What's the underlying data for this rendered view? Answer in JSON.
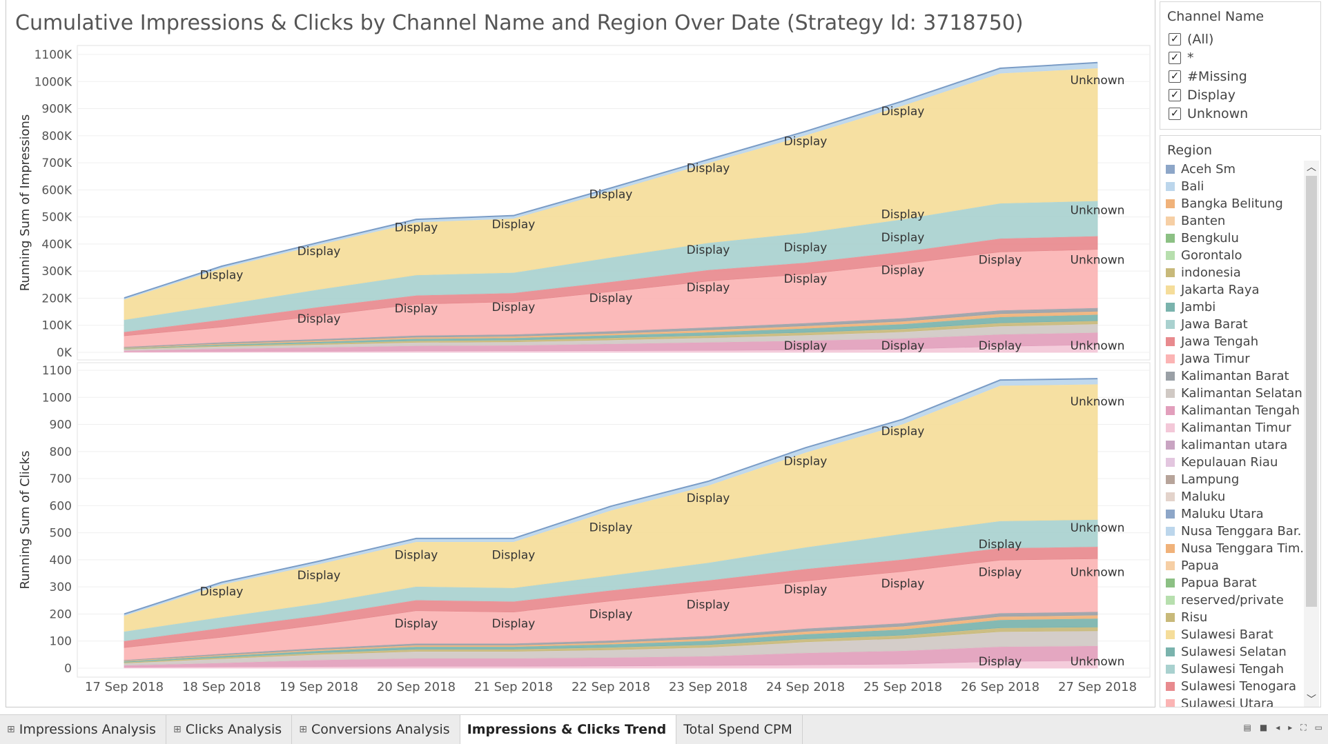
{
  "title": "Cumulative Impressions & Clicks by Channel Name and Region Over Date (Strategy Id: 3718750)",
  "chart_data": [
    {
      "type": "area",
      "stacked": true,
      "ylabel": "Running Sum of Impressions",
      "yticks": [
        "0K",
        "100K",
        "200K",
        "300K",
        "400K",
        "500K",
        "600K",
        "700K",
        "800K",
        "900K",
        "1000K",
        "1100K"
      ],
      "ylim": [
        0,
        1100000
      ],
      "x": [
        "17 Sep 2018",
        "18 Sep 2018",
        "19 Sep 2018",
        "20 Sep 2018",
        "21 Sep 2018",
        "22 Sep 2018",
        "23 Sep 2018",
        "24 Sep 2018",
        "25 Sep 2018",
        "26 Sep 2018",
        "27 Sep 2018"
      ],
      "series": [
        {
          "color": "#f3c8d8",
          "values": [
            2000,
            3000,
            4000,
            5000,
            5500,
            6000,
            7000,
            9000,
            12000,
            22000,
            28000
          ]
        },
        {
          "color": "#e29fbc",
          "values": [
            5000,
            11000,
            15000,
            20000,
            21000,
            26000,
            31000,
            35000,
            40000,
            45000,
            46000
          ]
        },
        {
          "color": "#d0c9c4",
          "values": [
            5000,
            8000,
            10000,
            12000,
            12500,
            14000,
            16000,
            20000,
            24000,
            30000,
            31000
          ]
        },
        {
          "color": "#c8b97a",
          "values": [
            2000,
            4000,
            5000,
            6000,
            6500,
            8000,
            9000,
            10000,
            11000,
            12000,
            12000
          ]
        },
        {
          "color": "#7ab3ad",
          "values": [
            2000,
            4000,
            6000,
            8000,
            8500,
            10000,
            12000,
            15000,
            18000,
            22000,
            23000
          ]
        },
        {
          "color": "#f0b27a",
          "values": [
            2000,
            3000,
            4000,
            5000,
            5500,
            6000,
            8000,
            9000,
            10000,
            12000,
            12000
          ]
        },
        {
          "color": "#9aa0a6",
          "values": [
            3000,
            5000,
            6000,
            7000,
            7500,
            9000,
            10000,
            11000,
            12000,
            13000,
            13000
          ]
        },
        {
          "color": "#fbb4b4",
          "values": [
            40000,
            55000,
            85000,
            115000,
            120000,
            145000,
            170000,
            180000,
            200000,
            215000,
            215000
          ]
        },
        {
          "color": "#e88a8e",
          "values": [
            15000,
            28000,
            33000,
            33000,
            33000,
            37000,
            42000,
            43000,
            45000,
            50000,
            50000
          ]
        },
        {
          "color": "#a9d1cf",
          "values": [
            45000,
            55000,
            65000,
            75000,
            75000,
            90000,
            100000,
            110000,
            120000,
            130000,
            130000
          ]
        },
        {
          "color": "#f5dd9a",
          "values": [
            75000,
            135000,
            165000,
            195000,
            200000,
            245000,
            295000,
            360000,
            420000,
            480000,
            490000
          ]
        },
        {
          "color": "#bcd6ec",
          "values": [
            5000,
            7000,
            8000,
            10000,
            10000,
            11000,
            12000,
            14000,
            16000,
            18000,
            20000
          ]
        }
      ],
      "labels": [
        {
          "text": "Display",
          "xi": 1,
          "v": 263000
        },
        {
          "text": "Display",
          "xi": 2,
          "v": 351000
        },
        {
          "text": "Display",
          "xi": 3,
          "v": 439000
        },
        {
          "text": "Display",
          "xi": 4,
          "v": 451000
        },
        {
          "text": "Display",
          "xi": 5,
          "v": 562000
        },
        {
          "text": "Display",
          "xi": 6,
          "v": 658000
        },
        {
          "text": "Display",
          "xi": 7,
          "v": 758000
        },
        {
          "text": "Display",
          "xi": 8,
          "v": 868000
        },
        {
          "text": "Unknown",
          "xi": 10,
          "v": 983000
        },
        {
          "text": "Display",
          "xi": 8,
          "v": 402000
        },
        {
          "text": "Display",
          "xi": 7,
          "v": 365000
        },
        {
          "text": "Display",
          "xi": 6,
          "v": 356000
        },
        {
          "text": "Display",
          "xi": 8,
          "v": 487000
        },
        {
          "text": "Unknown",
          "xi": 10,
          "v": 503000
        },
        {
          "text": "Display",
          "xi": 2,
          "v": 102000
        },
        {
          "text": "Display",
          "xi": 3,
          "v": 140000
        },
        {
          "text": "Display",
          "xi": 4,
          "v": 145000
        },
        {
          "text": "Display",
          "xi": 5,
          "v": 178000
        },
        {
          "text": "Display",
          "xi": 6,
          "v": 218000
        },
        {
          "text": "Display",
          "xi": 7,
          "v": 249000
        },
        {
          "text": "Display",
          "xi": 8,
          "v": 282000
        },
        {
          "text": "Display",
          "xi": 9,
          "v": 319000
        },
        {
          "text": "Unknown",
          "xi": 10,
          "v": 319000
        },
        {
          "text": "Display",
          "xi": 7,
          "v": 2000
        },
        {
          "text": "Display",
          "xi": 8,
          "v": 2000
        },
        {
          "text": "Display",
          "xi": 9,
          "v": 2000
        },
        {
          "text": "Unknown",
          "xi": 10,
          "v": 2000
        }
      ]
    },
    {
      "type": "area",
      "stacked": true,
      "ylabel": "Running Sum of Clicks",
      "yticks": [
        "0",
        "100",
        "200",
        "300",
        "400",
        "500",
        "600",
        "700",
        "800",
        "900",
        "1000",
        "1100"
      ],
      "ylim": [
        0,
        1100
      ],
      "x": [
        "17 Sep 2018",
        "18 Sep 2018",
        "19 Sep 2018",
        "20 Sep 2018",
        "21 Sep 2018",
        "22 Sep 2018",
        "23 Sep 2018",
        "24 Sep 2018",
        "25 Sep 2018",
        "26 Sep 2018",
        "27 Sep 2018"
      ],
      "series": [
        {
          "color": "#f3c8d8",
          "values": [
            3,
            5,
            6,
            7,
            7,
            8,
            10,
            12,
            15,
            25,
            28
          ]
        },
        {
          "color": "#e29fbc",
          "values": [
            8,
            15,
            25,
            30,
            30,
            32,
            35,
            45,
            50,
            55,
            55
          ]
        },
        {
          "color": "#d0c9c4",
          "values": [
            8,
            15,
            20,
            25,
            25,
            28,
            32,
            40,
            45,
            55,
            55
          ]
        },
        {
          "color": "#c8b97a",
          "values": [
            3,
            5,
            6,
            8,
            8,
            9,
            10,
            11,
            12,
            14,
            14
          ]
        },
        {
          "color": "#7ab3ad",
          "values": [
            4,
            6,
            8,
            10,
            10,
            12,
            15,
            18,
            22,
            30,
            32
          ]
        },
        {
          "color": "#f0b27a",
          "values": [
            2,
            3,
            4,
            5,
            5,
            6,
            8,
            10,
            11,
            12,
            12
          ]
        },
        {
          "color": "#9aa0a6",
          "values": [
            3,
            5,
            6,
            7,
            7,
            8,
            10,
            11,
            12,
            13,
            13
          ]
        },
        {
          "color": "#fbb4b4",
          "values": [
            45,
            60,
            85,
            120,
            115,
            145,
            165,
            175,
            190,
            195,
            195
          ]
        },
        {
          "color": "#e88a8e",
          "values": [
            25,
            35,
            35,
            40,
            40,
            40,
            40,
            45,
            45,
            45,
            45
          ]
        },
        {
          "color": "#a9d1cf",
          "values": [
            35,
            40,
            45,
            50,
            50,
            55,
            65,
            80,
            95,
            100,
            100
          ]
        },
        {
          "color": "#f5dd9a",
          "values": [
            58,
            120,
            145,
            165,
            170,
            240,
            285,
            350,
            405,
            500,
            500
          ]
        },
        {
          "color": "#bcd6ec",
          "values": [
            6,
            8,
            10,
            12,
            12,
            15,
            15,
            17,
            17,
            20,
            20
          ]
        }
      ],
      "labels": [
        {
          "text": "Display",
          "xi": 1,
          "v": 261
        },
        {
          "text": "Display",
          "xi": 2,
          "v": 321
        },
        {
          "text": "Display",
          "xi": 3,
          "v": 396
        },
        {
          "text": "Display",
          "xi": 4,
          "v": 396
        },
        {
          "text": "Display",
          "xi": 5,
          "v": 498
        },
        {
          "text": "Display",
          "xi": 6,
          "v": 606
        },
        {
          "text": "Display",
          "xi": 7,
          "v": 742
        },
        {
          "text": "Display",
          "xi": 8,
          "v": 853
        },
        {
          "text": "Unknown",
          "xi": 10,
          "v": 963
        },
        {
          "text": "Display",
          "xi": 9,
          "v": 435
        },
        {
          "text": "Unknown",
          "xi": 10,
          "v": 497
        },
        {
          "text": "Display",
          "xi": 3,
          "v": 142
        },
        {
          "text": "Display",
          "xi": 4,
          "v": 142
        },
        {
          "text": "Display",
          "xi": 5,
          "v": 177
        },
        {
          "text": "Display",
          "xi": 6,
          "v": 212
        },
        {
          "text": "Display",
          "xi": 7,
          "v": 269
        },
        {
          "text": "Display",
          "xi": 8,
          "v": 290
        },
        {
          "text": "Display",
          "xi": 9,
          "v": 332
        },
        {
          "text": "Unknown",
          "xi": 10,
          "v": 332
        },
        {
          "text": "Display",
          "xi": 9,
          "v": 3
        },
        {
          "text": "Unknown",
          "xi": 10,
          "v": 3
        }
      ]
    }
  ],
  "filters": {
    "channel_title": "Channel Name",
    "channels": [
      {
        "label": "(All)",
        "checked": true
      },
      {
        "label": "*",
        "checked": true
      },
      {
        "label": "#Missing",
        "checked": true
      },
      {
        "label": "Display",
        "checked": true
      },
      {
        "label": "Unknown",
        "checked": true
      }
    ],
    "check_glyph": "✓",
    "region_title": "Region",
    "regions": [
      {
        "label": "Aceh Sm",
        "color": "#8da6c8"
      },
      {
        "label": "Bali",
        "color": "#bcd6ec"
      },
      {
        "label": "Bangka Belitung",
        "color": "#f0b27a"
      },
      {
        "label": "Banten",
        "color": "#f6cfa5"
      },
      {
        "label": "Bengkulu",
        "color": "#8cc084"
      },
      {
        "label": "Gorontalo",
        "color": "#b7dfae"
      },
      {
        "label": "indonesia",
        "color": "#c8b97a"
      },
      {
        "label": "Jakarta Raya",
        "color": "#f5dd9a"
      },
      {
        "label": "Jambi",
        "color": "#7ab3ad"
      },
      {
        "label": "Jawa Barat",
        "color": "#a9d1cf"
      },
      {
        "label": "Jawa Tengah",
        "color": "#e88a8e"
      },
      {
        "label": "Jawa Timur",
        "color": "#fbb4b4"
      },
      {
        "label": "Kalimantan Barat",
        "color": "#9aa0a6"
      },
      {
        "label": "Kalimantan Selatan",
        "color": "#d0c9c4"
      },
      {
        "label": "Kalimantan Tengah",
        "color": "#e29fbc"
      },
      {
        "label": "Kalimantan Timur",
        "color": "#f3c8d8"
      },
      {
        "label": "kalimantan utara",
        "color": "#c9a4c2"
      },
      {
        "label": "Kepulauan Riau",
        "color": "#e3c6df"
      },
      {
        "label": "Lampung",
        "color": "#b7a49a"
      },
      {
        "label": "Maluku",
        "color": "#e3d3cb"
      },
      {
        "label": "Maluku Utara",
        "color": "#8da6c8"
      },
      {
        "label": "Nusa Tenggara Bar..",
        "color": "#bcd6ec"
      },
      {
        "label": "Nusa Tenggara Tim..",
        "color": "#f0b27a"
      },
      {
        "label": "Papua",
        "color": "#f6cfa5"
      },
      {
        "label": "Papua Barat",
        "color": "#8cc084"
      },
      {
        "label": "reserved/private",
        "color": "#b7dfae"
      },
      {
        "label": "Risu",
        "color": "#c8b97a"
      },
      {
        "label": "Sulawesi Barat",
        "color": "#f5dd9a"
      },
      {
        "label": "Sulawesi Selatan",
        "color": "#7ab3ad"
      },
      {
        "label": "Sulawesi Tengah",
        "color": "#a9d1cf"
      },
      {
        "label": "Sulawesi Tenogara",
        "color": "#e88a8e"
      },
      {
        "label": "Sulawesi Utara",
        "color": "#fbb4b4"
      }
    ]
  },
  "tabs": [
    {
      "label": "Impressions Analysis",
      "icon": "⊞",
      "active": false
    },
    {
      "label": "Clicks Analysis",
      "icon": "⊞",
      "active": false
    },
    {
      "label": "Conversions Analysis",
      "icon": "⊞",
      "active": false
    },
    {
      "label": "Impressions & Clicks Trend",
      "icon": "",
      "active": true
    },
    {
      "label": "Total Spend CPM",
      "icon": "",
      "active": false
    }
  ]
}
